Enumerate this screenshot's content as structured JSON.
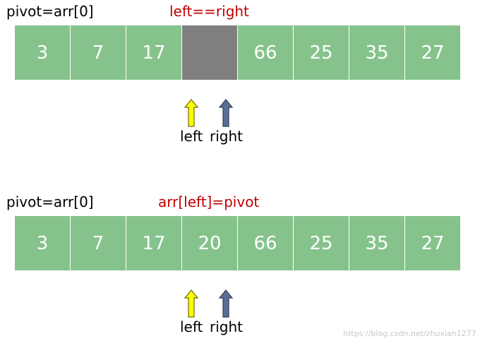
{
  "panels": [
    {
      "pivot_text": "pivot=arr[0]",
      "note_text": "left==right",
      "cells": [
        "3",
        "7",
        "17",
        "",
        "66",
        "25",
        "35",
        "27"
      ],
      "pointer_labels": {
        "left": "left",
        "right": "right"
      }
    },
    {
      "pivot_text": "pivot=arr[0]",
      "note_text": "arr[left]=pivot",
      "cells": [
        "3",
        "7",
        "17",
        "20",
        "66",
        "25",
        "35",
        "27"
      ],
      "pointer_labels": {
        "left": "left",
        "right": "right"
      }
    }
  ],
  "watermark": "https://blog.csdn.net/zhuxian1277",
  "colors": {
    "cell": "#86c38c",
    "empty_cell": "#7f7f7f",
    "note": "#c00000",
    "left_arrow": "#ffff00",
    "right_arrow": "#5a6f96"
  }
}
